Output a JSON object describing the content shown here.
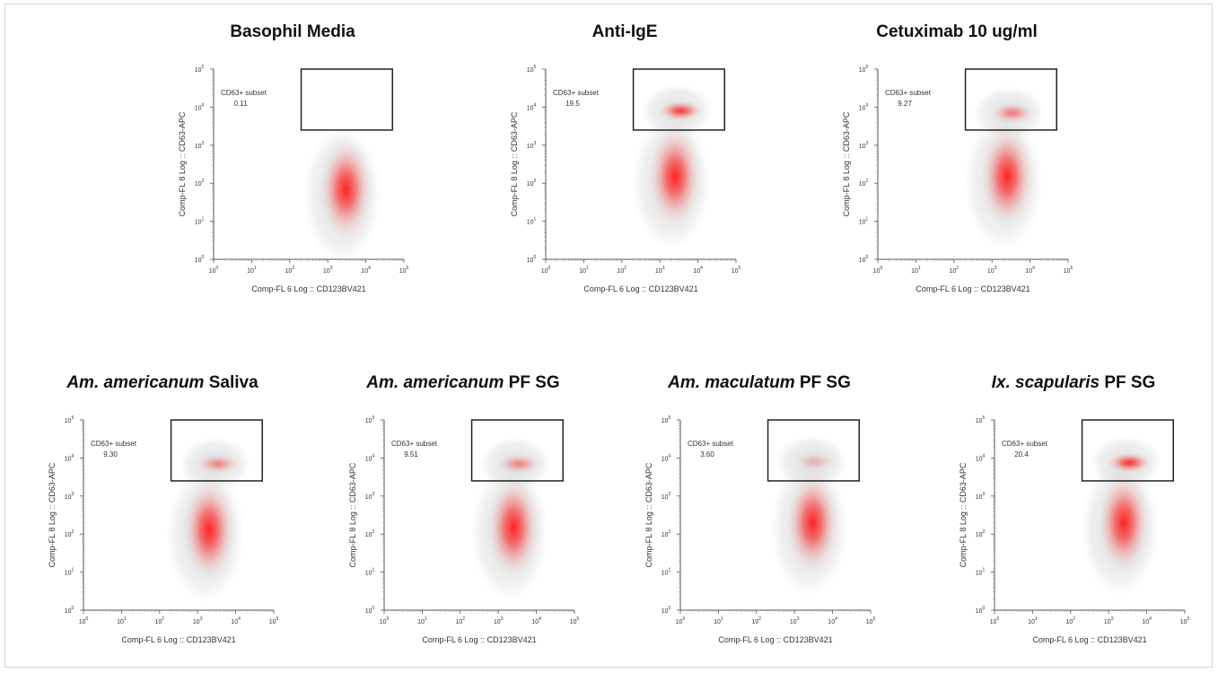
{
  "chart_data": [
    {
      "type": "heatmap",
      "title": "Basophil Media",
      "title_italic": "",
      "xlabel": "Comp-FL 6 Log :: CD123BV421",
      "ylabel": "Comp-FL 8 Log :: CD63-APC",
      "x_scale": "log",
      "y_scale": "log",
      "xlim": [
        1,
        100000
      ],
      "ylim": [
        1,
        100000
      ],
      "x_ticks": [
        "10^0",
        "10^1",
        "10^2",
        "10^3",
        "10^4",
        "10^5"
      ],
      "y_ticks": [
        "10^0",
        "10^1",
        "10^2",
        "10^3",
        "10^4",
        "10^5"
      ],
      "gate": {
        "label": "CD63+ subset",
        "value": "0.11",
        "x_range": [
          200,
          50000
        ],
        "y_range": [
          2500,
          100000
        ]
      },
      "density_peaks": [
        {
          "x": 3000,
          "y": 70,
          "intensity": 1.0
        }
      ]
    },
    {
      "type": "heatmap",
      "title": "Anti-IgE",
      "title_italic": "",
      "xlabel": "Comp-FL 6 Log :: CD123BV421",
      "ylabel": "Comp-FL 8 Log :: CD63-APC",
      "x_scale": "log",
      "y_scale": "log",
      "xlim": [
        1,
        100000
      ],
      "ylim": [
        1,
        100000
      ],
      "x_ticks": [
        "10^0",
        "10^1",
        "10^2",
        "10^3",
        "10^4",
        "10^5"
      ],
      "y_ticks": [
        "10^0",
        "10^1",
        "10^2",
        "10^3",
        "10^4",
        "10^5"
      ],
      "gate": {
        "label": "CD63+ subset",
        "value": "19.5",
        "x_range": [
          200,
          50000
        ],
        "y_range": [
          2500,
          100000
        ]
      },
      "density_peaks": [
        {
          "x": 2500,
          "y": 150,
          "intensity": 1.0
        },
        {
          "x": 3500,
          "y": 8000,
          "intensity": 0.9
        }
      ]
    },
    {
      "type": "heatmap",
      "title": "Cetuximab 10 ug/ml",
      "title_italic": "",
      "xlabel": "Comp-FL 6 Log :: CD123BV421",
      "ylabel": "Comp-FL 8 Log :: CD63-APC",
      "x_scale": "log",
      "y_scale": "log",
      "xlim": [
        1,
        100000
      ],
      "ylim": [
        1,
        100000
      ],
      "x_ticks": [
        "10^0",
        "10^1",
        "10^2",
        "10^3",
        "10^4",
        "10^5"
      ],
      "y_ticks": [
        "10^0",
        "10^1",
        "10^2",
        "10^3",
        "10^4",
        "10^5"
      ],
      "gate": {
        "label": "CD63+ subset",
        "value": "9.27",
        "x_range": [
          200,
          50000
        ],
        "y_range": [
          2500,
          100000
        ]
      },
      "density_peaks": [
        {
          "x": 2500,
          "y": 150,
          "intensity": 1.0
        },
        {
          "x": 3500,
          "y": 7000,
          "intensity": 0.55
        }
      ]
    },
    {
      "type": "heatmap",
      "title": " Saliva",
      "title_italic": "Am. americanum",
      "xlabel": "Comp-FL 6 Log :: CD123BV421",
      "ylabel": "Comp-FL 8 Log :: CD63-APC",
      "x_scale": "log",
      "y_scale": "log",
      "xlim": [
        1,
        100000
      ],
      "ylim": [
        1,
        100000
      ],
      "x_ticks": [
        "10^0",
        "10^1",
        "10^2",
        "10^3",
        "10^4",
        "10^5"
      ],
      "y_ticks": [
        "10^0",
        "10^1",
        "10^2",
        "10^3",
        "10^4",
        "10^5"
      ],
      "gate": {
        "label": "CD63+ subset",
        "value": "9.30",
        "x_range": [
          200,
          50000
        ],
        "y_range": [
          2500,
          100000
        ]
      },
      "density_peaks": [
        {
          "x": 2000,
          "y": 130,
          "intensity": 1.0
        },
        {
          "x": 3500,
          "y": 7000,
          "intensity": 0.5
        }
      ]
    },
    {
      "type": "heatmap",
      "title": " PF SG",
      "title_italic": "Am. americanum",
      "xlabel": "Comp-FL 6 Log :: CD123BV421",
      "ylabel": "Comp-FL 8 Log :: CD63-APC",
      "x_scale": "log",
      "y_scale": "log",
      "xlim": [
        1,
        100000
      ],
      "ylim": [
        1,
        100000
      ],
      "x_ticks": [
        "10^0",
        "10^1",
        "10^2",
        "10^3",
        "10^4",
        "10^5"
      ],
      "y_ticks": [
        "10^0",
        "10^1",
        "10^2",
        "10^3",
        "10^4",
        "10^5"
      ],
      "gate": {
        "label": "CD63+ subset",
        "value": "9.51",
        "x_range": [
          200,
          50000
        ],
        "y_range": [
          2500,
          100000
        ]
      },
      "density_peaks": [
        {
          "x": 2500,
          "y": 150,
          "intensity": 1.0
        },
        {
          "x": 3500,
          "y": 7000,
          "intensity": 0.5
        }
      ]
    },
    {
      "type": "heatmap",
      "title": " PF SG",
      "title_italic": "Am. maculatum",
      "xlabel": "Comp-FL 6 Log :: CD123BV421",
      "ylabel": "Comp-FL 8 Log :: CD63-APC",
      "x_scale": "log",
      "y_scale": "log",
      "xlim": [
        1,
        100000
      ],
      "ylim": [
        1,
        100000
      ],
      "x_ticks": [
        "10^0",
        "10^1",
        "10^2",
        "10^3",
        "10^4",
        "10^5"
      ],
      "y_ticks": [
        "10^0",
        "10^1",
        "10^2",
        "10^3",
        "10^4",
        "10^5"
      ],
      "gate": {
        "label": "CD63+ subset",
        "value": "3.60",
        "x_range": [
          200,
          50000
        ],
        "y_range": [
          2500,
          100000
        ]
      },
      "density_peaks": [
        {
          "x": 3000,
          "y": 200,
          "intensity": 1.0
        },
        {
          "x": 3500,
          "y": 8000,
          "intensity": 0.2
        }
      ]
    },
    {
      "type": "heatmap",
      "title": " PF SG",
      "title_italic": "Ix. scapularis",
      "xlabel": "Comp-FL 6 Log :: CD123BV421",
      "ylabel": "Comp-FL 8 Log :: CD63-APC",
      "x_scale": "log",
      "y_scale": "log",
      "xlim": [
        1,
        100000
      ],
      "ylim": [
        1,
        100000
      ],
      "x_ticks": [
        "10^0",
        "10^1",
        "10^2",
        "10^3",
        "10^4",
        "10^5"
      ],
      "y_ticks": [
        "10^0",
        "10^1",
        "10^2",
        "10^3",
        "10^4",
        "10^5"
      ],
      "gate": {
        "label": "CD63+ subset",
        "value": "20.4",
        "x_range": [
          200,
          50000
        ],
        "y_range": [
          2500,
          100000
        ]
      },
      "density_peaks": [
        {
          "x": 2500,
          "y": 200,
          "intensity": 1.0
        },
        {
          "x": 3500,
          "y": 7500,
          "intensity": 0.95
        }
      ]
    }
  ],
  "colors": {
    "density": "#ff1a1a",
    "halo": "#d9d9d9",
    "gate": "#222222",
    "axis": "#555555"
  }
}
